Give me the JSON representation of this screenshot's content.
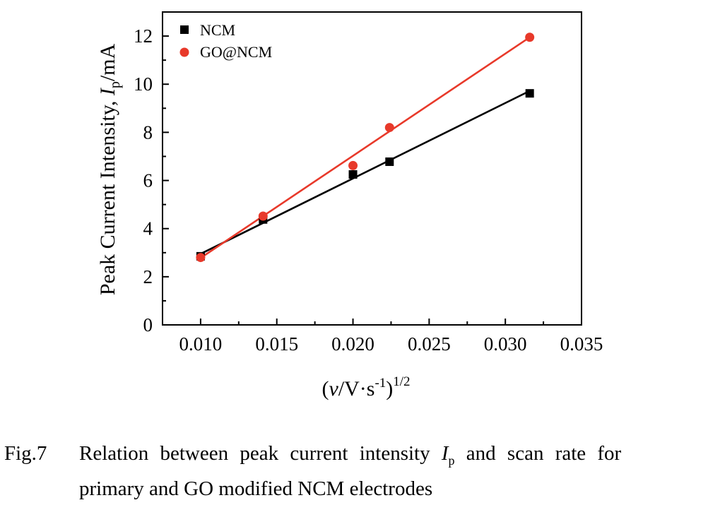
{
  "chart_data": {
    "type": "scatter",
    "xlabel": {
      "prefix": "(",
      "italic": "v",
      "mid": "/V·s",
      "sup1": "-1",
      "close": ")",
      "sup2": "1/2"
    },
    "ylabel": {
      "text": "Peak Current Intensity, ",
      "italic": "I",
      "sub": "p",
      "unit": "/mA"
    },
    "xlim": [
      0.0075,
      0.035
    ],
    "ylim": [
      0,
      13
    ],
    "xticks": [
      "0.010",
      "0.015",
      "0.020",
      "0.025",
      "0.030",
      "0.035"
    ],
    "xtick_values": [
      0.01,
      0.015,
      0.02,
      0.025,
      0.03,
      0.035
    ],
    "yticks": [
      "0",
      "2",
      "4",
      "6",
      "8",
      "10",
      "12"
    ],
    "ytick_values": [
      0,
      2,
      4,
      6,
      8,
      10,
      12
    ],
    "legend_position": "top-left",
    "series": [
      {
        "name": "NCM",
        "marker": "square",
        "color": "#000000",
        "x": [
          0.01,
          0.0141,
          0.02,
          0.0224,
          0.0316
        ],
        "y": [
          2.85,
          4.38,
          6.25,
          6.78,
          9.62
        ],
        "fit": {
          "x0": 0.01,
          "y0": 2.95,
          "x1": 0.0316,
          "y1": 9.72
        }
      },
      {
        "name": "GO@NCM",
        "marker": "circle",
        "color": "#e8392a",
        "x": [
          0.01,
          0.0141,
          0.02,
          0.0224,
          0.0316
        ],
        "y": [
          2.8,
          4.52,
          6.62,
          8.2,
          11.95
        ],
        "fit": {
          "x0": 0.01,
          "y0": 2.78,
          "x1": 0.0316,
          "y1": 11.95
        }
      }
    ]
  },
  "caption": {
    "label": "Fig.7",
    "line1_a": "Relation between peak current intensity ",
    "line1_italic": "I",
    "line1_sub": "p",
    "line1_b": " and scan rate for",
    "line2": "primary and GO modified NCM electrodes"
  }
}
